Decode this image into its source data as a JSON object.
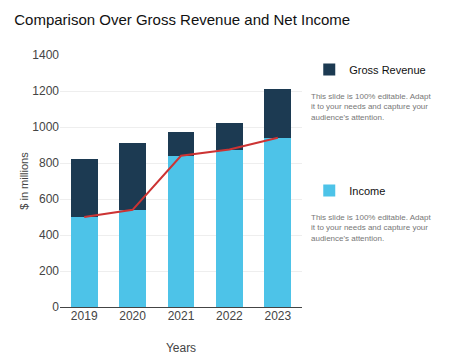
{
  "chart_data": {
    "type": "bar",
    "title": "Comparison Over Gross Revenue and Net Income",
    "xlabel": "Years",
    "ylabel": "$ in millions",
    "categories": [
      "2019",
      "2020",
      "2021",
      "2022",
      "2023"
    ],
    "stacked": true,
    "series": [
      {
        "name": "Income",
        "type": "bar",
        "color": "#4DC3E8",
        "values": [
          500,
          540,
          840,
          875,
          940
        ]
      },
      {
        "name": "Gross Revenue",
        "type": "bar",
        "color": "#1C3A52",
        "values": [
          325,
          370,
          135,
          150,
          270
        ]
      },
      {
        "type": "line",
        "color": "#CC3333",
        "values": [
          500,
          540,
          840,
          875,
          940
        ]
      }
    ],
    "ylim": [
      0,
      1400
    ],
    "yticks": [
      0,
      200,
      400,
      600,
      800,
      1000,
      1200,
      1400
    ],
    "grid": true,
    "legend": "right",
    "annotations": [
      {
        "text": "This slide is 100% editable. Adapt\nit to your needs and capture your\naudience's attention."
      },
      {
        "text": "This slide is 100% editable. Adapt\nit to your needs and capture your\naudience's attention."
      }
    ]
  }
}
